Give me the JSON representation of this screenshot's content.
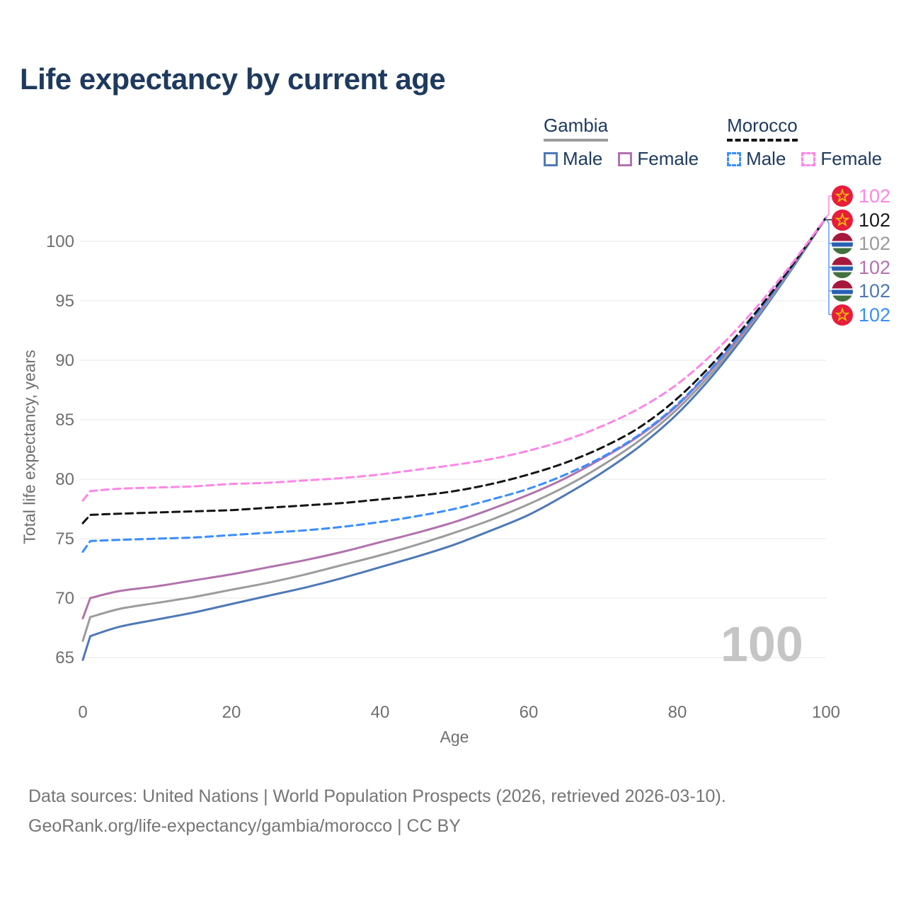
{
  "title": "Life expectancy by current age",
  "legend": {
    "groups": [
      {
        "country": "Gambia",
        "line_style": "solid",
        "underline_color": "#9c9c9c",
        "items": [
          {
            "label": "Male",
            "color": "#4e79b7"
          },
          {
            "label": "Female",
            "color": "#b172ae"
          }
        ]
      },
      {
        "country": "Morocco",
        "line_style": "dashed",
        "underline_color": "#141414",
        "items": [
          {
            "label": "Male",
            "color": "#3a8dff"
          },
          {
            "label": "Female",
            "color": "#ff85e6"
          }
        ]
      }
    ]
  },
  "watermark": "100",
  "footer": {
    "line1": "Data sources: United Nations | World Population Prospects (2026, retrieved 2026-03-10).",
    "line2": "GeoRank.org/life-expectancy/gambia/morocco | CC BY"
  },
  "chart_data": {
    "type": "line",
    "title": "Life expectancy by current age",
    "xlabel": "Age",
    "ylabel": "Total life expectancy, years",
    "xlim": [
      0,
      100
    ],
    "ylim": [
      64,
      103
    ],
    "x_ticks": [
      0,
      20,
      40,
      60,
      80,
      100
    ],
    "y_ticks": [
      65,
      70,
      75,
      80,
      85,
      90,
      95,
      100
    ],
    "grid": "horizontal",
    "ages": [
      0,
      1,
      5,
      10,
      15,
      20,
      25,
      30,
      35,
      40,
      45,
      50,
      55,
      60,
      65,
      70,
      75,
      80,
      85,
      90,
      95,
      100
    ],
    "series": [
      {
        "id": "gambia-male",
        "name": "Gambia Male",
        "country": "Gambia",
        "sex": "Male",
        "color": "#4e79b7",
        "dash": false,
        "flag": "gambia",
        "end_value": 102,
        "values": [
          64.8,
          66.8,
          67.6,
          68.2,
          68.8,
          69.5,
          70.2,
          70.9,
          71.7,
          72.6,
          73.5,
          74.5,
          75.7,
          77.0,
          78.7,
          80.6,
          82.8,
          85.5,
          88.9,
          92.9,
          97.3,
          102
        ]
      },
      {
        "id": "gambia-both",
        "name": "Gambia",
        "country": "Gambia",
        "sex": "Both sexes",
        "color": "#9c9c9c",
        "dash": false,
        "flag": "gambia",
        "end_value": 102,
        "values": [
          66.4,
          68.4,
          69.1,
          69.6,
          70.1,
          70.7,
          71.3,
          72.0,
          72.8,
          73.6,
          74.5,
          75.5,
          76.6,
          77.9,
          79.4,
          81.2,
          83.3,
          85.9,
          89.2,
          93.1,
          97.4,
          102
        ]
      },
      {
        "id": "gambia-female",
        "name": "Gambia Female",
        "country": "Gambia",
        "sex": "Female",
        "color": "#b172ae",
        "dash": false,
        "flag": "gambia",
        "end_value": 102,
        "values": [
          68.3,
          70.0,
          70.6,
          71.0,
          71.5,
          72.0,
          72.6,
          73.2,
          73.9,
          74.7,
          75.5,
          76.4,
          77.5,
          78.7,
          80.1,
          81.8,
          83.7,
          86.2,
          89.5,
          93.3,
          97.5,
          102
        ]
      },
      {
        "id": "morocco-male",
        "name": "Morocco Male",
        "country": "Morocco",
        "sex": "Male",
        "color": "#3a8dff",
        "dash": true,
        "flag": "morocco",
        "end_value": 102,
        "values": [
          73.9,
          74.8,
          74.9,
          75.0,
          75.1,
          75.3,
          75.5,
          75.7,
          76.0,
          76.4,
          76.9,
          77.5,
          78.3,
          79.2,
          80.4,
          81.9,
          83.8,
          86.3,
          89.6,
          93.4,
          97.5,
          102
        ]
      },
      {
        "id": "morocco-both",
        "name": "Morocco",
        "country": "Morocco",
        "sex": "Both sexes",
        "color": "#141414",
        "dash": true,
        "flag": "morocco",
        "end_value": 102,
        "values": [
          76.3,
          77.0,
          77.1,
          77.2,
          77.3,
          77.4,
          77.6,
          77.8,
          78.0,
          78.3,
          78.6,
          79.0,
          79.6,
          80.4,
          81.4,
          82.7,
          84.4,
          86.8,
          89.9,
          93.6,
          97.6,
          102
        ]
      },
      {
        "id": "morocco-female",
        "name": "Morocco Female",
        "country": "Morocco",
        "sex": "Female",
        "color": "#ff85e6",
        "dash": true,
        "flag": "morocco",
        "end_value": 102,
        "values": [
          78.2,
          79.0,
          79.2,
          79.3,
          79.4,
          79.6,
          79.7,
          79.9,
          80.1,
          80.4,
          80.8,
          81.2,
          81.7,
          82.4,
          83.3,
          84.5,
          86.0,
          88.0,
          90.7,
          94.0,
          97.8,
          102
        ]
      }
    ],
    "end_labels": [
      {
        "value": "102",
        "series": "morocco-female",
        "flag": "morocco",
        "color": "#ff85e6"
      },
      {
        "value": "102",
        "series": "morocco-both",
        "flag": "morocco",
        "color": "#1a1a1a"
      },
      {
        "value": "102",
        "series": "gambia-both",
        "flag": "gambia",
        "color": "#9a9a9a"
      },
      {
        "value": "102",
        "series": "gambia-female",
        "flag": "gambia",
        "color": "#b172ae"
      },
      {
        "value": "102",
        "series": "gambia-male",
        "flag": "gambia",
        "color": "#4e79b7"
      },
      {
        "value": "102",
        "series": "morocco-male",
        "flag": "morocco",
        "color": "#3a8dff"
      }
    ]
  }
}
